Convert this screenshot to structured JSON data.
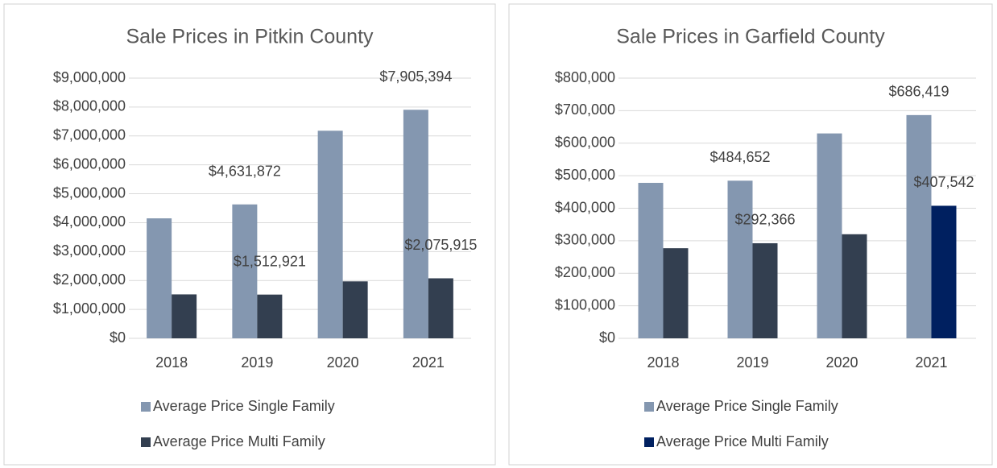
{
  "chart_data": [
    {
      "type": "bar",
      "title": "Sale Prices in Pitkin County",
      "categories": [
        "2018",
        "2019",
        "2020",
        "2021"
      ],
      "series": [
        {
          "name": "Average Price Single Family",
          "color": "#8497b0",
          "values": [
            4150000,
            4631872,
            7180000,
            7905394
          ],
          "value_labels": [
            null,
            "$4,631,872",
            null,
            "$7,905,394"
          ]
        },
        {
          "name": "Average Price Multi Family",
          "color": "#333f50",
          "values": [
            1520000,
            1512921,
            1970000,
            2075915
          ],
          "value_labels": [
            null,
            "$1,512,921",
            null,
            "$2,075,915"
          ]
        }
      ],
      "ylim": [
        0,
        9000000
      ],
      "yticks": [
        {
          "value": 0,
          "label": "$0"
        },
        {
          "value": 1000000,
          "label": "$1,000,000"
        },
        {
          "value": 2000000,
          "label": "$2,000,000"
        },
        {
          "value": 3000000,
          "label": "$3,000,000"
        },
        {
          "value": 4000000,
          "label": "$4,000,000"
        },
        {
          "value": 5000000,
          "label": "$5,000,000"
        },
        {
          "value": 6000000,
          "label": "$6,000,000"
        },
        {
          "value": 7000000,
          "label": "$7,000,000"
        },
        {
          "value": 8000000,
          "label": "$8,000,000"
        },
        {
          "value": 9000000,
          "label": "$9,000,000"
        }
      ],
      "grid": true,
      "legend": "bottom"
    },
    {
      "type": "bar",
      "title": "Sale Prices in Garfield County",
      "categories": [
        "2018",
        "2019",
        "2020",
        "2021"
      ],
      "series": [
        {
          "name": "Average Price Single Family",
          "color": "#8497b0",
          "values": [
            478000,
            484652,
            630000,
            686419
          ],
          "value_labels": [
            null,
            "$484,652",
            null,
            "$686,419"
          ]
        },
        {
          "name": "Average Price Multi Family",
          "color": "#002060",
          "point_colors": [
            "#333f50",
            "#333f50",
            "#333f50",
            "#002060"
          ],
          "values": [
            277000,
            292366,
            320000,
            407542
          ],
          "value_labels": [
            null,
            "$292,366",
            null,
            "$407,542"
          ]
        }
      ],
      "ylim": [
        0,
        800000
      ],
      "yticks": [
        {
          "value": 0,
          "label": "$0"
        },
        {
          "value": 100000,
          "label": "$100,000"
        },
        {
          "value": 200000,
          "label": "$200,000"
        },
        {
          "value": 300000,
          "label": "$300,000"
        },
        {
          "value": 400000,
          "label": "$400,000"
        },
        {
          "value": 500000,
          "label": "$500,000"
        },
        {
          "value": 600000,
          "label": "$600,000"
        },
        {
          "value": 700000,
          "label": "$700,000"
        },
        {
          "value": 800000,
          "label": "$800,000"
        }
      ],
      "grid": true,
      "legend": "bottom"
    }
  ]
}
